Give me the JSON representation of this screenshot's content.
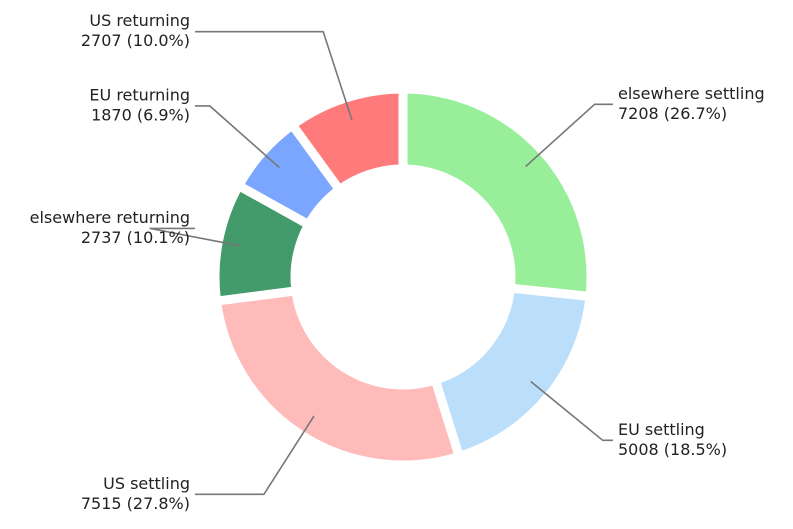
{
  "chart_data": {
    "type": "donut",
    "categories": [
      "elsewhere settling",
      "EU settling",
      "US settling",
      "elsewhere returning",
      "EU returning",
      "US returning"
    ],
    "values": [
      7208,
      5008,
      7515,
      2737,
      1870,
      2707
    ],
    "value_labels": [
      "7208 (26.7%)",
      "5008 (18.5%)",
      "7515 (27.8%)",
      "2737 (10.1%)",
      "1870 (6.9%)",
      "2707 (10.0%)"
    ],
    "colors": [
      "#98ee99",
      "#bbdefb",
      "#ffbaba",
      "#439a6a",
      "#7aa6ff",
      "#ff7a7a"
    ]
  }
}
